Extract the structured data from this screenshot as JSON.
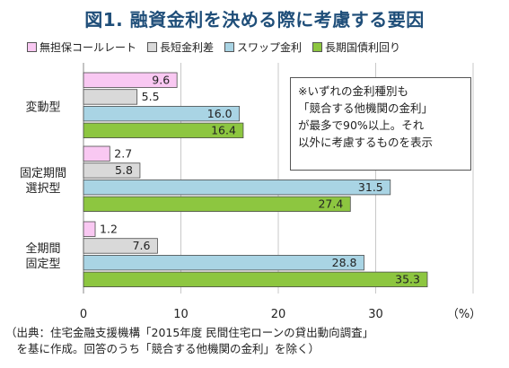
{
  "title": "図1. 融資金利を決める際に考慮する要因",
  "note": {
    "lines": [
      "※いずれの金利種別も",
      "「競合する他機関の金利」",
      "が最多で90%以上。それ",
      "以外に考慮するものを表示"
    ]
  },
  "source": {
    "lines": [
      "（出典：住宅金融支援機構「2015年度 民間住宅ローンの貸出動向調査」",
      "　を基に作成。回答のうち「競合する他機関の金利」を除く）"
    ]
  },
  "colors": {
    "series": [
      "#f9c8f2",
      "#d9d9d9",
      "#a9d4e4",
      "#8dc640"
    ],
    "axis": "#888888",
    "grid": "#c8c8c8"
  },
  "chart_data": {
    "type": "bar",
    "orientation": "horizontal",
    "categories": [
      {
        "lines": [
          "変動型"
        ]
      },
      {
        "lines": [
          "固定期間",
          "選択型"
        ]
      },
      {
        "lines": [
          "全期間",
          "固定型"
        ]
      }
    ],
    "series": [
      {
        "name": "無担保コールレート",
        "values": [
          9.6,
          2.7,
          1.2
        ]
      },
      {
        "name": "長短金利差",
        "values": [
          5.5,
          5.8,
          7.6
        ]
      },
      {
        "name": "スワップ金利",
        "values": [
          16.0,
          31.5,
          28.8
        ]
      },
      {
        "name": "長期国債利回り",
        "values": [
          16.4,
          27.4,
          35.3
        ]
      }
    ],
    "value_labels": [
      [
        "9.6",
        "2.7",
        "1.2"
      ],
      [
        "5.5",
        "5.8",
        "7.6"
      ],
      [
        "16.0",
        "31.5",
        "28.8"
      ],
      [
        "16.4",
        "27.4",
        "35.3"
      ]
    ],
    "xlim": [
      0,
      40
    ],
    "xticks": [
      "0",
      "10",
      "20",
      "30"
    ],
    "unit_label": "（%）",
    "legend_position": "top",
    "grid": true
  }
}
